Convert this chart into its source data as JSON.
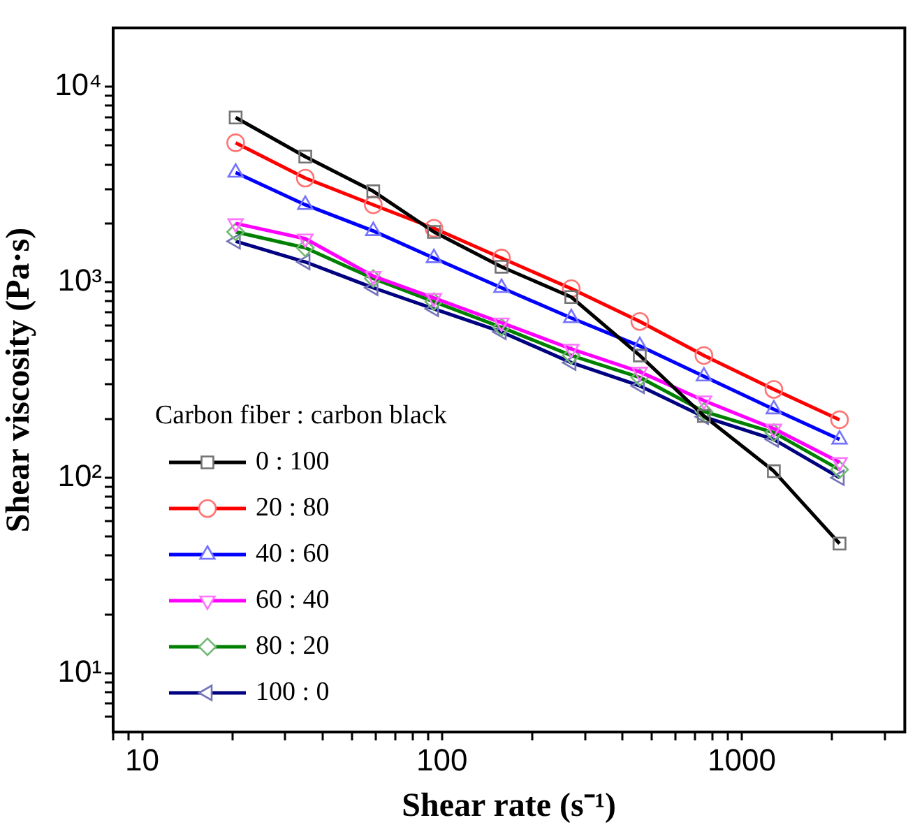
{
  "chart_data": {
    "type": "line",
    "xlabel": "Shear rate (s⁻¹)",
    "ylabel": "Shear viscosity (Pa·s)",
    "legend_title": "Carbon fiber : carbon black",
    "log": "xy",
    "grid": false,
    "legend": "bottom left",
    "line_style": "solid",
    "x": [
      20.5,
      35,
      59,
      94,
      158,
      270,
      457,
      748,
      1280,
      2120
    ],
    "xlim": [
      8,
      3500
    ],
    "xticks": [
      {
        "value": 8,
        "label": null
      },
      {
        "value": 9,
        "label": null
      },
      10,
      {
        "value": 20,
        "label": null
      },
      {
        "value": 30,
        "label": null
      },
      {
        "value": 40,
        "label": null
      },
      {
        "value": 50,
        "label": null
      },
      {
        "value": 60,
        "label": null
      },
      {
        "value": 70,
        "label": null
      },
      {
        "value": 80,
        "label": null
      },
      {
        "value": 90,
        "label": null
      },
      100,
      {
        "value": 200,
        "label": null
      },
      {
        "value": 300,
        "label": null
      },
      {
        "value": 400,
        "label": null
      },
      {
        "value": 500,
        "label": null
      },
      {
        "value": 600,
        "label": null
      },
      {
        "value": 700,
        "label": null
      },
      {
        "value": 800,
        "label": null
      },
      {
        "value": 900,
        "label": null
      },
      1000,
      {
        "value": 2000,
        "label": null
      },
      {
        "value": 3000,
        "label": null
      }
    ],
    "ylim": [
      5,
      20000
    ],
    "yticks": [
      {
        "value": 6,
        "label": null
      },
      {
        "value": 7,
        "label": null
      },
      {
        "value": 8,
        "label": null
      },
      {
        "value": 9,
        "label": null
      },
      {
        "value": 10,
        "label": "10¹"
      },
      {
        "value": 20,
        "label": null
      },
      {
        "value": 30,
        "label": null
      },
      {
        "value": 40,
        "label": null
      },
      {
        "value": 50,
        "label": null
      },
      {
        "value": 60,
        "label": null
      },
      {
        "value": 70,
        "label": null
      },
      {
        "value": 80,
        "label": null
      },
      {
        "value": 90,
        "label": null
      },
      {
        "value": 100,
        "label": "10²"
      },
      {
        "value": 200,
        "label": null
      },
      {
        "value": 300,
        "label": null
      },
      {
        "value": 400,
        "label": null
      },
      {
        "value": 500,
        "label": null
      },
      {
        "value": 600,
        "label": null
      },
      {
        "value": 700,
        "label": null
      },
      {
        "value": 800,
        "label": null
      },
      {
        "value": 900,
        "label": null
      },
      {
        "value": 1000,
        "label": "10³"
      },
      {
        "value": 2000,
        "label": null
      },
      {
        "value": 3000,
        "label": null
      },
      {
        "value": 4000,
        "label": null
      },
      {
        "value": 5000,
        "label": null
      },
      {
        "value": 6000,
        "label": null
      },
      {
        "value": 7000,
        "label": null
      },
      {
        "value": 8000,
        "label": null
      },
      {
        "value": 9000,
        "label": null
      },
      {
        "value": 10000,
        "label": "10⁴"
      }
    ],
    "series": [
      {
        "name": "0 : 100",
        "color": "#000000",
        "marker": "square",
        "values": [
          6960,
          4390,
          2920,
          1810,
          1200,
          840,
          422,
          207,
          108,
          46
        ]
      },
      {
        "name": "20 : 80",
        "color": "#ff0000",
        "marker": "circle",
        "values": [
          5170,
          3410,
          2490,
          1890,
          1330,
          927,
          630,
          422,
          283,
          198
        ]
      },
      {
        "name": "40 : 60",
        "color": "#0000ff",
        "marker": "triangle",
        "values": [
          3640,
          2490,
          1830,
          1330,
          937,
          656,
          472,
          330,
          224,
          157
        ]
      },
      {
        "name": "60 : 40",
        "color": "#ff00ff",
        "marker": "triangle-down",
        "values": [
          2000,
          1670,
          1075,
          830,
          621,
          456,
          348,
          248,
          178,
          120
        ]
      },
      {
        "name": "80 : 20",
        "color": "#008000",
        "marker": "diamond",
        "values": [
          1810,
          1500,
          1045,
          795,
          588,
          422,
          326,
          218,
          170,
          110
        ]
      },
      {
        "name": "100 : 0",
        "color": "#000080",
        "marker": "triangle-left",
        "values": [
          1620,
          1270,
          937,
          731,
          557,
          388,
          295,
          205,
          157,
          100
        ]
      }
    ]
  }
}
